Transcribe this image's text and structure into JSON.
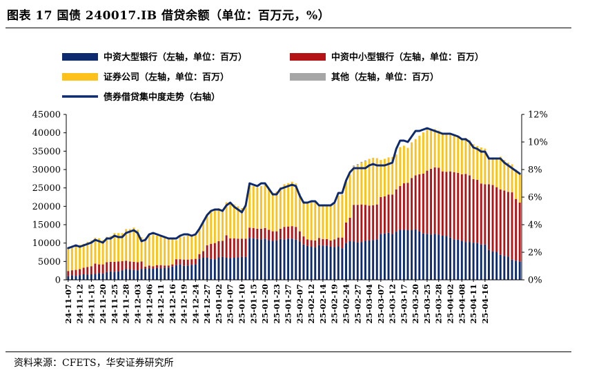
{
  "header": {
    "title": "图表 17  国债 240017.IB 借贷余额（单位：百万元，%）"
  },
  "footer": {
    "source": "资料来源：CFETS，华安证券研究所"
  },
  "colors": {
    "large": "#0d2a6e",
    "small": "#b41315",
    "broker": "#fcc21b",
    "other": "#a6a6a6",
    "line": "#0d2a6e"
  },
  "legend": {
    "large": "中资大型银行（左轴，单位：百万）",
    "small": "中资中小型银行（左轴，单位：百万）",
    "broker": "证券公司（左轴，单位：百万）",
    "other": "其他（左轴，单位：百万）",
    "line": "债券借贷集中度走势（右轴）"
  },
  "chart_data": {
    "type": "bar",
    "stacked": true,
    "y_left": {
      "min": 0,
      "max": 45000,
      "ticks": [
        "0",
        "5000",
        "10000",
        "15000",
        "20000",
        "25000",
        "30000",
        "35000",
        "40000",
        "45000"
      ]
    },
    "y_right": {
      "min": 0,
      "max": 12,
      "ticks": [
        "0%",
        "2%",
        "4%",
        "6%",
        "8%",
        "10%",
        "12%"
      ]
    },
    "x_tick_labels": [
      "24-11-07",
      "24-11-12",
      "24-11-15",
      "24-11-20",
      "24-11-25",
      "24-11-28",
      "24-12-03",
      "24-12-06",
      "24-12-11",
      "24-12-16",
      "24-12-19",
      "24-12-24",
      "24-12-27",
      "25-01-02",
      "25-01-07",
      "25-01-10",
      "25-01-15",
      "25-01-20",
      "25-01-23",
      "25-01-27",
      "25-02-07",
      "25-02-12",
      "25-02-14",
      "25-02-19",
      "25-02-24",
      "25-02-27",
      "25-03-04",
      "25-03-07",
      "25-03-12",
      "25-03-17",
      "25-03-20",
      "25-03-25",
      "25-03-28",
      "25-04-02",
      "25-04-08",
      "25-04-11",
      "25-04-16"
    ],
    "series": [
      {
        "name": "中资大型银行",
        "key": "large",
        "values": [
          1000,
          1200,
          1100,
          1300,
          1500,
          1400,
          1500,
          1600,
          1800,
          1700,
          2100,
          2300,
          2200,
          2300,
          2600,
          2900,
          2800,
          2700,
          2600,
          2900,
          3000,
          3100,
          3000,
          3200,
          3100,
          3200,
          3300,
          3600,
          4000,
          4200,
          3800,
          3900,
          4100,
          4200,
          5700,
          6000,
          6000,
          5700,
          5600,
          6100,
          6200,
          6000,
          5900,
          6000,
          6100,
          6200,
          6200,
          11400,
          11300,
          11100,
          11000,
          11200,
          10800,
          10600,
          10700,
          11100,
          11000,
          11200,
          11200,
          10900,
          10400,
          9600,
          9200,
          9000,
          8800,
          9400,
          9300,
          9300,
          9000,
          8900,
          9100,
          8600,
          10000,
          10500,
          10400,
          10200,
          10300,
          10600,
          10700,
          10800,
          11000,
          12500,
          12600,
          12800,
          12500,
          13100,
          13600,
          13600,
          13500,
          13500,
          13700,
          13200,
          12600,
          12500,
          12300,
          12500,
          12300,
          12000,
          11900,
          11500,
          11000,
          10900,
          10600,
          10300,
          10300,
          10100,
          10000,
          9600,
          9600,
          8100,
          7700,
          7600,
          6800,
          6500,
          6300,
          5500,
          5200,
          5000
        ]
      },
      {
        "name": "中资中小型银行",
        "key": "small",
        "values": [
          1400,
          1400,
          1600,
          1600,
          1800,
          2100,
          2200,
          2800,
          2400,
          2500,
          2700,
          2600,
          2700,
          2700,
          2500,
          2300,
          2200,
          2200,
          2200,
          2100,
          600,
          800,
          700,
          800,
          900,
          700,
          600,
          600,
          1600,
          1400,
          1700,
          1600,
          1500,
          1500,
          1300,
          1800,
          3400,
          4100,
          4400,
          4400,
          4400,
          6100,
          5400,
          5300,
          5100,
          5000,
          5000,
          2800,
          2800,
          2800,
          2900,
          2900,
          2800,
          2600,
          2500,
          2800,
          3400,
          3300,
          3400,
          3500,
          2800,
          2200,
          1800,
          1800,
          1900,
          2000,
          1800,
          1800,
          1700,
          2100,
          2400,
          2900,
          5600,
          6400,
          10000,
          10200,
          10200,
          9800,
          9500,
          9500,
          9500,
          10000,
          10100,
          10400,
          10700,
          11500,
          11900,
          12700,
          12900,
          14200,
          14700,
          15500,
          16300,
          17200,
          17900,
          18100,
          18200,
          17500,
          17500,
          18000,
          18300,
          18200,
          18100,
          18500,
          18100,
          17300,
          17200,
          16600,
          16400,
          17900,
          18100,
          17600,
          17800,
          17800,
          17600,
          18300,
          16800,
          16000
        ]
      },
      {
        "name": "证券公司",
        "key": "broker",
        "values": [
          6500,
          6600,
          6900,
          6600,
          6500,
          6800,
          7000,
          7000,
          7100,
          6600,
          6900,
          7000,
          7800,
          7700,
          7600,
          8600,
          8800,
          9300,
          8800,
          6600,
          7700,
          8400,
          8600,
          8000,
          7800,
          7600,
          7400,
          6900,
          5200,
          6400,
          6300,
          6600,
          6500,
          6600,
          7000,
          8400,
          8400,
          9000,
          9400,
          9000,
          8500,
          9000,
          9800,
          9200,
          8800,
          8300,
          9300,
          11600,
          11400,
          11200,
          11600,
          11800,
          11300,
          10500,
          10800,
          11300,
          11600,
          11800,
          12100,
          11800,
          10300,
          9600,
          10200,
          10700,
          10800,
          9100,
          9200,
          9300,
          9800,
          9800,
          11400,
          11700,
          11500,
          11800,
          10400,
          10800,
          11300,
          11800,
          12700,
          12900,
          12600,
          10100,
          10200,
          10100,
          10200,
          9500,
          10600,
          10200,
          9500,
          9700,
          9900,
          10500,
          11200,
          11100,
          10800,
          10400,
          10100,
          10400,
          10400,
          10300,
          10200,
          10000,
          9700,
          9800,
          9600,
          9500,
          9200,
          9800,
          9700,
          7400,
          7500,
          7900,
          8900,
          8300,
          8000,
          7600,
          8000,
          7700
        ]
      },
      {
        "name": "其他",
        "key": "other",
        "values": [
          0,
          0,
          0,
          0,
          0,
          0,
          0,
          0,
          0,
          0,
          0,
          0,
          0,
          0,
          0,
          0,
          0,
          0,
          0,
          0,
          0,
          0,
          0,
          0,
          0,
          0,
          0,
          0,
          0,
          0,
          0,
          0,
          0,
          0,
          0,
          0,
          0,
          0,
          0,
          0,
          0,
          0,
          0,
          0,
          0,
          0,
          0,
          0,
          0,
          0,
          0,
          0,
          0,
          0,
          0,
          0,
          0,
          0,
          0,
          0,
          0,
          0,
          0,
          0,
          0,
          0,
          0,
          0,
          0,
          0,
          0,
          0,
          0,
          0,
          300,
          300,
          300,
          300,
          0,
          0,
          0,
          0,
          0,
          0,
          0,
          0,
          0,
          0,
          0,
          0,
          0,
          0,
          0,
          0,
          0,
          0,
          0,
          0,
          0,
          0,
          0,
          0,
          0,
          0,
          0,
          0,
          0,
          0,
          0,
          0,
          0,
          0,
          0,
          0,
          0,
          0,
          0,
          0
        ]
      }
    ],
    "line": {
      "name": "债券借贷集中度走势",
      "axis": "right",
      "values": [
        2.3,
        2.4,
        2.5,
        2.4,
        2.5,
        2.6,
        2.7,
        2.9,
        2.8,
        2.7,
        3.0,
        3.0,
        3.2,
        3.1,
        3.1,
        3.4,
        3.5,
        3.6,
        3.4,
        2.8,
        2.9,
        3.3,
        3.4,
        3.3,
        3.2,
        3.1,
        3.0,
        3.0,
        3.0,
        3.2,
        3.3,
        3.3,
        3.2,
        3.3,
        3.7,
        4.2,
        4.7,
        5.0,
        5.1,
        5.1,
        5.0,
        5.4,
        5.6,
        5.3,
        5.1,
        4.9,
        5.4,
        7.0,
        6.9,
        6.8,
        7.0,
        7.0,
        6.6,
        6.2,
        6.2,
        6.6,
        6.7,
        6.8,
        6.9,
        6.8,
        6.1,
        5.6,
        5.6,
        5.7,
        5.7,
        5.4,
        5.4,
        5.4,
        5.4,
        5.6,
        6.3,
        6.3,
        7.2,
        7.8,
        8.1,
        8.1,
        8.1,
        8.1,
        8.3,
        8.4,
        8.3,
        8.3,
        8.3,
        8.4,
        8.5,
        9.5,
        10.1,
        10.1,
        10.0,
        10.4,
        10.8,
        10.8,
        10.9,
        11.0,
        10.9,
        10.8,
        10.7,
        10.6,
        10.6,
        10.6,
        10.5,
        10.4,
        10.2,
        10.2,
        10.0,
        9.6,
        9.5,
        9.3,
        9.3,
        8.8,
        8.8,
        8.8,
        8.8,
        8.5,
        8.3,
        8.1,
        7.9,
        7.7
      ]
    }
  }
}
